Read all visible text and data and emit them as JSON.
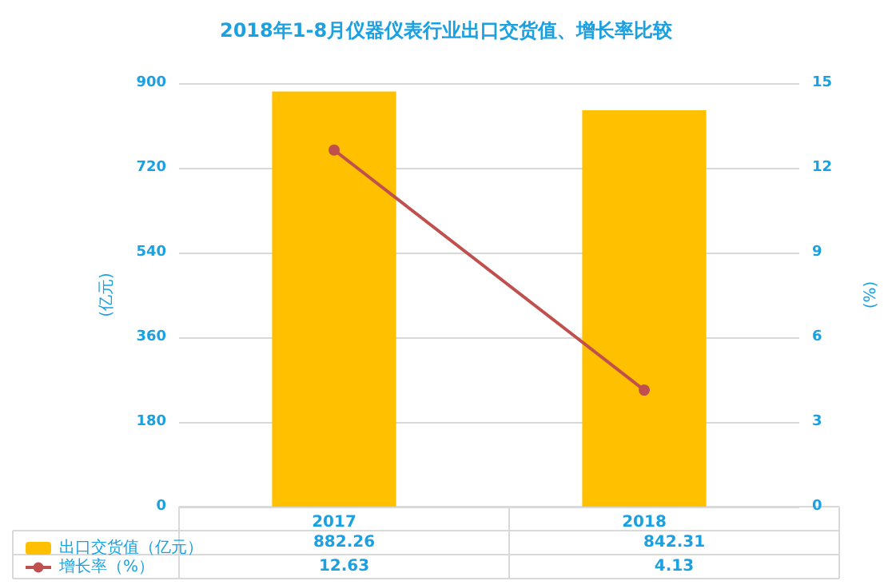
{
  "chart_data": {
    "type": "bar",
    "title": "2018年1-8月仪器仪表行业出口交货值、增长率比较",
    "ylabel": "(亿元)",
    "y2label": "(%)",
    "categories": [
      "2017",
      "2018"
    ],
    "series": [
      {
        "name": "出口交货值（亿元）",
        "color": "#ffc000",
        "values": [
          882.26,
          842.31
        ]
      },
      {
        "name": "增长率（%）",
        "type": "line",
        "axis": "y2",
        "color": "#c0504d",
        "values": [
          12.63,
          4.13
        ]
      }
    ],
    "ylim": [
      0,
      900
    ],
    "yticks": [
      0,
      180,
      360,
      540,
      720,
      900
    ],
    "y2lim": [
      0,
      15
    ],
    "y2ticks": [
      0,
      3,
      6,
      9,
      12,
      15
    ],
    "grid": "y",
    "legend": "bottom left",
    "marker": "circle",
    "line_style": "solid",
    "data_labels": true
  }
}
